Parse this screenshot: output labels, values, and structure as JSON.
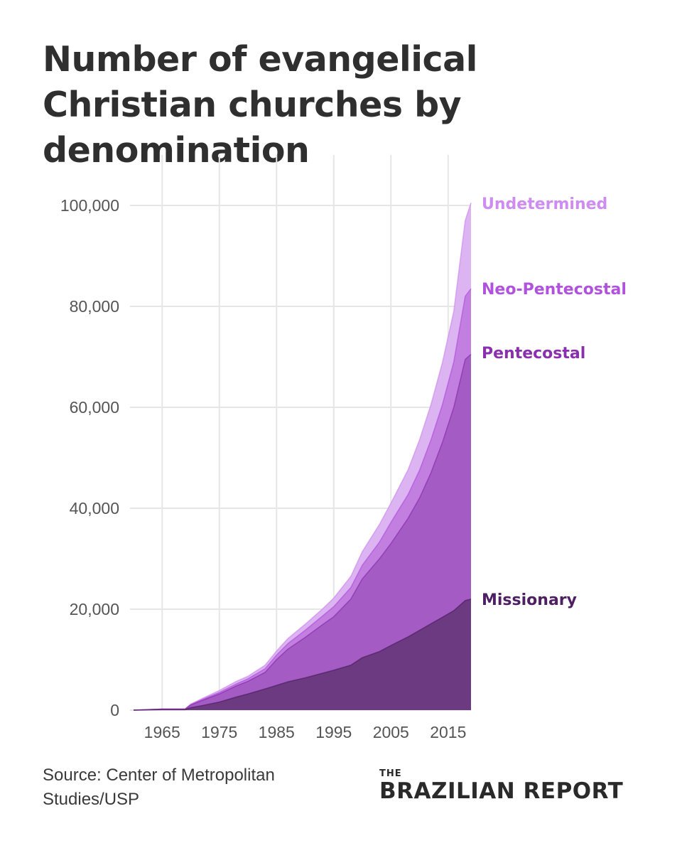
{
  "title": "Number of evangelical Christian churches by denomination",
  "source": "Source: Center of Metropolitan Studies/USP",
  "logo": {
    "the": "THE",
    "name": "BRAZILIAN REPORT"
  },
  "colors": {
    "missionary": "#6b3a80",
    "pentecostal": "#a45cc4",
    "neo_pentecostal": "#c27fe0",
    "undetermined": "#ddb4f2",
    "missionary_label": "#4e1f63",
    "pentecostal_label": "#8a2fad",
    "neo_pentecostal_label": "#b052dd",
    "undetermined_label": "#cf8cf0",
    "grid": "#e6e6e6"
  },
  "chart_data": {
    "type": "area",
    "stacked": true,
    "xlim": [
      1960,
      2019
    ],
    "ylim": [
      0,
      110000
    ],
    "x_ticks": [
      1965,
      1975,
      1985,
      1995,
      2005,
      2015
    ],
    "x_tick_labels": [
      "1965",
      "1975",
      "1985",
      "1995",
      "2005",
      "2015"
    ],
    "y_ticks": [
      0,
      20000,
      40000,
      60000,
      80000,
      100000
    ],
    "y_tick_labels": [
      "0",
      "20,000",
      "40,000",
      "60,000",
      "80,000",
      "100,000"
    ],
    "grid": true,
    "legend": "direct labels at right end of series",
    "x": [
      1960,
      1965,
      1969,
      1970,
      1972,
      1975,
      1978,
      1980,
      1983,
      1985,
      1987,
      1990,
      1993,
      1995,
      1998,
      2000,
      2003,
      2005,
      2008,
      2010,
      2012,
      2014,
      2016,
      2018,
      2019
    ],
    "series": [
      {
        "name": "Missionary",
        "key": "missionary",
        "values": [
          0,
          100,
          100,
          500,
          900,
          1600,
          2600,
          3200,
          4200,
          4900,
          5600,
          6400,
          7300,
          7900,
          8900,
          10400,
          11600,
          12800,
          14500,
          15800,
          17100,
          18400,
          19700,
          21700,
          22000
        ]
      },
      {
        "name": "Pentecostal",
        "key": "pentecostal",
        "cumulative": [
          0,
          200,
          200,
          1000,
          1900,
          3200,
          4800,
          5700,
          7500,
          10000,
          12100,
          14400,
          16900,
          18500,
          22000,
          26000,
          30000,
          33000,
          38000,
          42000,
          47000,
          53000,
          60000,
          69500,
          70500
        ]
      },
      {
        "name": "Neo-Pentecostal",
        "key": "neo_pentecostal",
        "cumulative": [
          0,
          200,
          200,
          1100,
          2100,
          3500,
          5200,
          6200,
          8200,
          10900,
          13200,
          15800,
          18600,
          20500,
          24300,
          28700,
          33300,
          37200,
          42700,
          47500,
          53500,
          60500,
          69000,
          82000,
          83500
        ]
      },
      {
        "name": "Undetermined",
        "key": "undetermined",
        "cumulative": [
          0,
          200,
          200,
          1200,
          2300,
          3900,
          5700,
          6700,
          8900,
          11700,
          14200,
          17000,
          20000,
          22200,
          26500,
          31400,
          36800,
          41000,
          47600,
          53500,
          60500,
          68800,
          79000,
          97000,
          100500
        ]
      }
    ]
  }
}
